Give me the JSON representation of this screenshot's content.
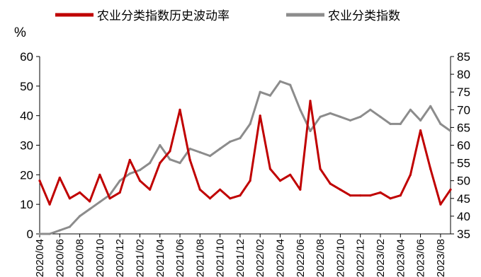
{
  "chart_data": {
    "type": "line",
    "title": "",
    "unit_label": "%",
    "colors": {
      "volatility": "#c00000",
      "index": "#8c8c8c"
    },
    "legend": {
      "position": "top",
      "entries": [
        "农业分类指数历史波动率",
        "农业分类指数"
      ]
    },
    "left_axis": {
      "ylim": [
        0,
        60
      ],
      "ticks": [
        "0",
        "10",
        "20",
        "30",
        "40",
        "50",
        "60"
      ]
    },
    "right_axis": {
      "ylim": [
        35,
        85
      ],
      "ticks": [
        "35",
        "40",
        "45",
        "50",
        "55",
        "60",
        "65",
        "70",
        "75",
        "80",
        "85"
      ]
    },
    "x_ticks": [
      "2020/04",
      "2020/06",
      "2020/08",
      "2020/10",
      "2020/12",
      "2021/02",
      "2021/04",
      "2021/06",
      "2021/08",
      "2021/10",
      "2021/12",
      "2022/02",
      "2022/04",
      "2022/06",
      "2022/08",
      "2022/10",
      "2022/12",
      "2023/02",
      "2023/04",
      "2023/06",
      "2023/08"
    ],
    "x_range": [
      "2020/04",
      "2023/09"
    ],
    "series": [
      {
        "name": "农业分类指数历史波动率",
        "axis": "left",
        "x": [
          "2020/04",
          "2020/05",
          "2020/06",
          "2020/07",
          "2020/08",
          "2020/09",
          "2020/10",
          "2020/11",
          "2020/12",
          "2021/01",
          "2021/02",
          "2021/03",
          "2021/04",
          "2021/05",
          "2021/06",
          "2021/07",
          "2021/08",
          "2021/09",
          "2021/10",
          "2021/11",
          "2021/12",
          "2022/01",
          "2022/02",
          "2022/03",
          "2022/04",
          "2022/05",
          "2022/06",
          "2022/07",
          "2022/08",
          "2022/09",
          "2022/10",
          "2022/11",
          "2022/12",
          "2023/01",
          "2023/02",
          "2023/03",
          "2023/04",
          "2023/05",
          "2023/06",
          "2023/07",
          "2023/08",
          "2023/09"
        ],
        "values": [
          18,
          10,
          19,
          12,
          14,
          11,
          20,
          12,
          14,
          25,
          18,
          15,
          24,
          28,
          42,
          25,
          15,
          12,
          15,
          12,
          13,
          18,
          40,
          22,
          18,
          20,
          15,
          45,
          22,
          17,
          15,
          13,
          13,
          13,
          14,
          12,
          13,
          20,
          35,
          22,
          10,
          15
        ]
      },
      {
        "name": "农业分类指数",
        "axis": "right",
        "x": [
          "2020/04",
          "2020/05",
          "2020/06",
          "2020/07",
          "2020/08",
          "2020/09",
          "2020/10",
          "2020/11",
          "2020/12",
          "2021/01",
          "2021/02",
          "2021/03",
          "2021/04",
          "2021/05",
          "2021/06",
          "2021/07",
          "2021/08",
          "2021/09",
          "2021/10",
          "2021/11",
          "2021/12",
          "2022/01",
          "2022/02",
          "2022/03",
          "2022/04",
          "2022/05",
          "2022/06",
          "2022/07",
          "2022/08",
          "2022/09",
          "2022/10",
          "2022/11",
          "2022/12",
          "2023/01",
          "2023/02",
          "2023/03",
          "2023/04",
          "2023/05",
          "2023/06",
          "2023/07",
          "2023/08",
          "2023/09"
        ],
        "values": [
          35,
          35,
          36,
          37,
          40,
          42,
          44,
          46,
          50,
          52,
          53,
          55,
          60,
          56,
          55,
          59,
          58,
          57,
          59,
          61,
          62,
          66,
          75,
          74,
          78,
          77,
          70,
          64,
          68,
          69,
          68,
          67,
          68,
          70,
          68,
          66,
          66,
          70,
          67,
          71,
          66,
          64
        ]
      }
    ]
  }
}
